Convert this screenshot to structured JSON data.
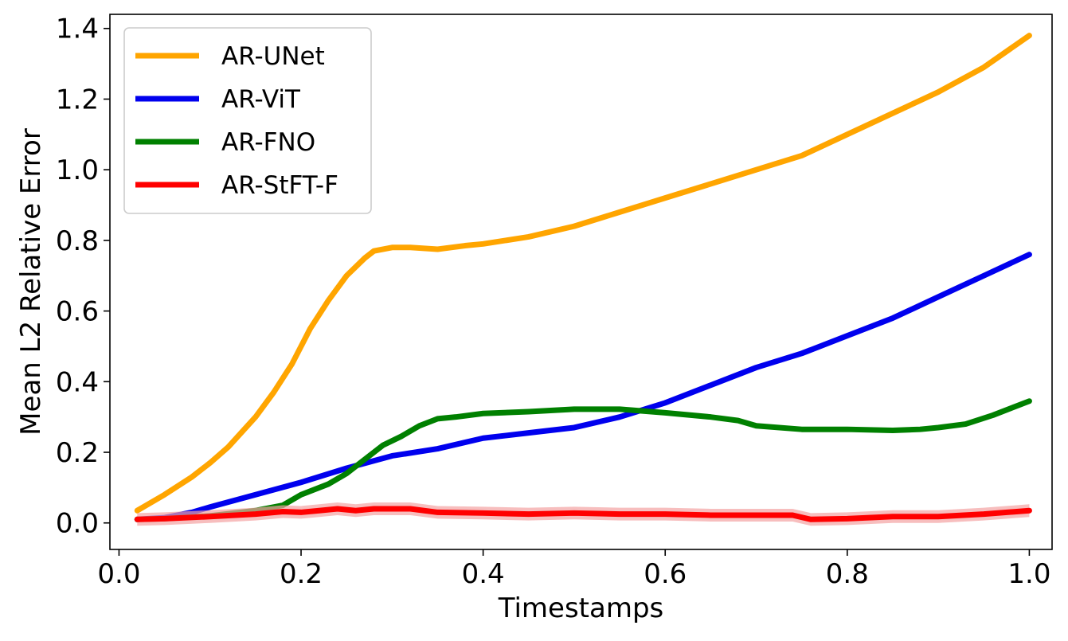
{
  "chart_data": {
    "type": "line",
    "title": "",
    "xlabel": "Timestamps",
    "ylabel": "Mean L2 Relative Error",
    "xlim": [
      -0.01,
      1.025
    ],
    "ylim": [
      -0.075,
      1.44
    ],
    "xticks": [
      "0.0",
      "0.2",
      "0.4",
      "0.6",
      "0.8",
      "1.0"
    ],
    "yticks": [
      "0.0",
      "0.2",
      "0.4",
      "0.6",
      "0.8",
      "1.0",
      "1.2",
      "1.4"
    ],
    "grid": false,
    "legend_position": "top-left",
    "series": [
      {
        "name": "AR-UNet",
        "color": "#FFA500",
        "x": [
          0.02,
          0.05,
          0.08,
          0.1,
          0.12,
          0.15,
          0.17,
          0.19,
          0.21,
          0.23,
          0.25,
          0.27,
          0.28,
          0.3,
          0.32,
          0.35,
          0.38,
          0.4,
          0.45,
          0.5,
          0.55,
          0.6,
          0.65,
          0.7,
          0.75,
          0.8,
          0.85,
          0.9,
          0.95,
          1.0
        ],
        "y": [
          0.035,
          0.08,
          0.13,
          0.17,
          0.215,
          0.3,
          0.37,
          0.45,
          0.55,
          0.63,
          0.7,
          0.75,
          0.77,
          0.78,
          0.78,
          0.775,
          0.785,
          0.79,
          0.81,
          0.84,
          0.88,
          0.92,
          0.96,
          1.0,
          1.04,
          1.1,
          1.16,
          1.22,
          1.29,
          1.38
        ]
      },
      {
        "name": "AR-ViT",
        "color": "#0000EE",
        "x": [
          0.02,
          0.05,
          0.08,
          0.1,
          0.15,
          0.2,
          0.25,
          0.3,
          0.35,
          0.4,
          0.45,
          0.5,
          0.55,
          0.6,
          0.65,
          0.7,
          0.75,
          0.8,
          0.85,
          0.9,
          0.95,
          1.0
        ],
        "y": [
          0.01,
          0.015,
          0.03,
          0.045,
          0.08,
          0.115,
          0.155,
          0.19,
          0.21,
          0.24,
          0.255,
          0.27,
          0.3,
          0.34,
          0.39,
          0.44,
          0.48,
          0.53,
          0.58,
          0.64,
          0.7,
          0.76
        ]
      },
      {
        "name": "AR-FNO",
        "color": "#008000",
        "x": [
          0.02,
          0.05,
          0.1,
          0.15,
          0.18,
          0.2,
          0.23,
          0.25,
          0.27,
          0.29,
          0.31,
          0.33,
          0.35,
          0.37,
          0.4,
          0.45,
          0.5,
          0.55,
          0.6,
          0.65,
          0.68,
          0.7,
          0.75,
          0.8,
          0.85,
          0.88,
          0.9,
          0.93,
          0.96,
          1.0
        ],
        "y": [
          0.01,
          0.012,
          0.02,
          0.035,
          0.05,
          0.08,
          0.11,
          0.14,
          0.18,
          0.22,
          0.245,
          0.275,
          0.295,
          0.3,
          0.31,
          0.315,
          0.322,
          0.322,
          0.312,
          0.3,
          0.29,
          0.275,
          0.265,
          0.265,
          0.262,
          0.265,
          0.27,
          0.28,
          0.305,
          0.345
        ]
      },
      {
        "name": "AR-StFT-F",
        "color": "#FF0000",
        "band_color": "#F4A3A3",
        "x": [
          0.02,
          0.05,
          0.1,
          0.15,
          0.18,
          0.2,
          0.22,
          0.24,
          0.26,
          0.28,
          0.3,
          0.32,
          0.35,
          0.4,
          0.45,
          0.5,
          0.55,
          0.6,
          0.65,
          0.7,
          0.74,
          0.76,
          0.8,
          0.85,
          0.9,
          0.95,
          1.0
        ],
        "y": [
          0.01,
          0.012,
          0.018,
          0.025,
          0.032,
          0.03,
          0.035,
          0.04,
          0.035,
          0.04,
          0.04,
          0.04,
          0.03,
          0.028,
          0.025,
          0.028,
          0.025,
          0.025,
          0.022,
          0.022,
          0.022,
          0.01,
          0.012,
          0.018,
          0.018,
          0.025,
          0.035
        ],
        "band": 0.018
      }
    ]
  }
}
